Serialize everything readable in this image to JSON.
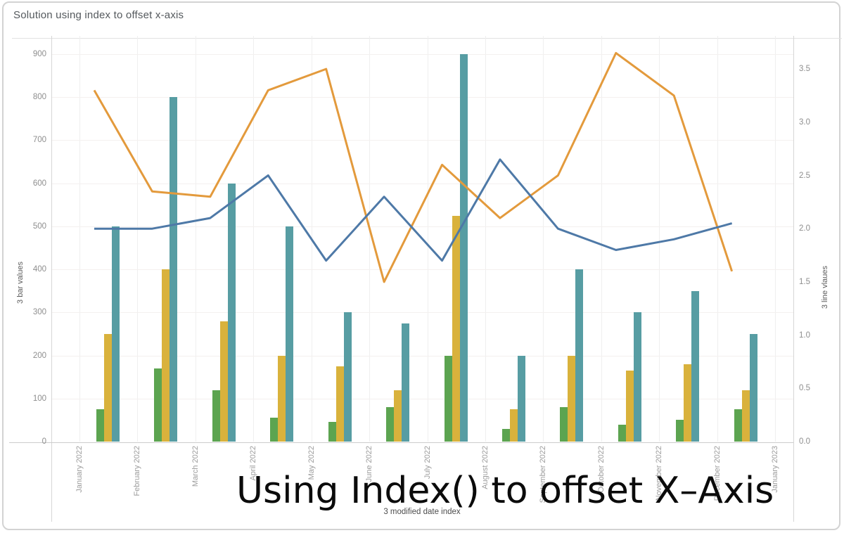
{
  "card": {
    "title": "Solution using index to offset x-axis"
  },
  "overlay_caption": "Using Index() to offset X–Axis",
  "chart_data": {
    "type": "combo",
    "subtype": "grouped-bars-plus-lines",
    "title": "Solution using index to offset x-axis",
    "categories": [
      "January 2022",
      "February 2022",
      "March 2022",
      "April 2022",
      "May 2022",
      "June 2022",
      "July 2022",
      "August 2022",
      "September 2022",
      "October 2022",
      "November 2022",
      "December 2022",
      "January 2023"
    ],
    "bar_axis": {
      "title": "3 bar values",
      "ticks": [
        0,
        100,
        200,
        300,
        400,
        500,
        600,
        700,
        800,
        900
      ],
      "range": [
        0,
        940
      ]
    },
    "line_axis": {
      "title": "3 line vlaues",
      "ticks": [
        "0.0",
        "0.5",
        "1.0",
        "1.5",
        "2.0",
        "2.5",
        "3.0",
        "3.5"
      ],
      "range": [
        0,
        3.8
      ]
    },
    "x_axis": {
      "title": "3 modified date  index"
    },
    "layout": {
      "grid": true,
      "legend": false,
      "marks_offset_between_month_gridlines": true
    },
    "bar_series": [
      {
        "name": "green bars",
        "color": "#5CA450",
        "values": [
          75,
          170,
          120,
          55,
          45,
          80,
          200,
          30,
          80,
          40,
          50,
          75
        ]
      },
      {
        "name": "yellow bars",
        "color": "#D9B23C",
        "values": [
          250,
          400,
          280,
          200,
          175,
          120,
          525,
          75,
          200,
          165,
          180,
          120
        ]
      },
      {
        "name": "teal bars",
        "color": "#579DA3",
        "values": [
          500,
          800,
          600,
          500,
          300,
          275,
          900,
          200,
          400,
          300,
          350,
          250
        ]
      }
    ],
    "line_series": [
      {
        "name": "orange line",
        "color": "#E39A3C",
        "values": [
          3.3,
          2.35,
          2.3,
          3.3,
          3.5,
          1.5,
          2.6,
          2.1,
          2.5,
          3.65,
          3.25,
          1.6
        ]
      },
      {
        "name": "blue line",
        "color": "#4E79A7",
        "values": [
          2.0,
          2.0,
          2.1,
          2.5,
          1.7,
          2.3,
          1.7,
          2.65,
          2.0,
          1.8,
          1.9,
          2.05
        ]
      }
    ]
  }
}
